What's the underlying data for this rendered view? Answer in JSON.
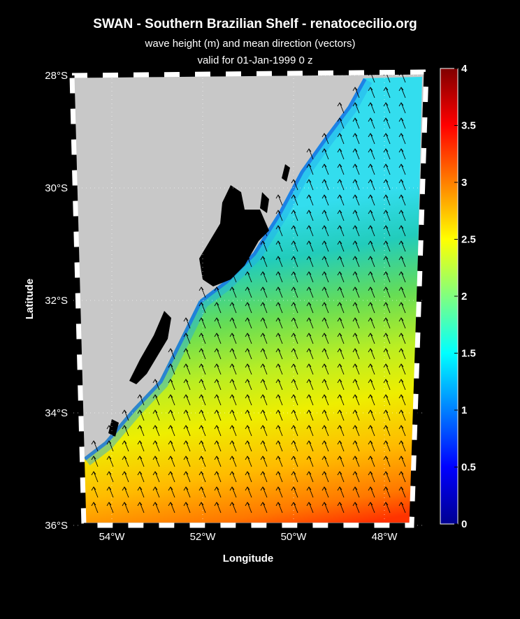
{
  "header": {
    "title": "SWAN - Southern Brazilian Shelf - renatocecilio.org",
    "subtitle": "wave height (m) and mean direction (vectors)",
    "valid": "valid for 01-Jan-1999    0 z"
  },
  "map": {
    "xlabel": "Longitude",
    "ylabel": "Latitude",
    "lat_ticks": [
      {
        "value": -28,
        "label": "28°S"
      },
      {
        "value": -30,
        "label": "30°S"
      },
      {
        "value": -32,
        "label": "32°S"
      },
      {
        "value": -34,
        "label": "34°S"
      },
      {
        "value": -36,
        "label": "36°S"
      }
    ],
    "lon_ticks": [
      {
        "value": -54,
        "label": "54°W"
      },
      {
        "value": -52,
        "label": "52°W"
      },
      {
        "value": -50,
        "label": "50°W"
      },
      {
        "value": -48,
        "label": "48°W"
      }
    ]
  },
  "colorbar": {
    "lim": [
      0,
      4
    ],
    "ticks": [
      0,
      0.5,
      1,
      1.5,
      2,
      2.5,
      3,
      3.5,
      4
    ]
  }
}
